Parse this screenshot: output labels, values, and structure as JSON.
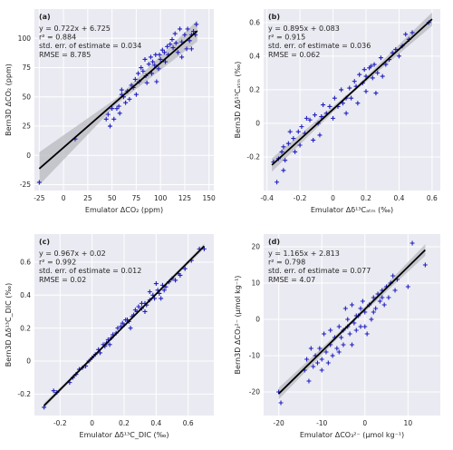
{
  "chart_data": [
    {
      "type": "scatter",
      "panel": "(a)",
      "stats": [
        "y = 0.722x + 6.725",
        "r² = 0.884",
        "std. err. of estimate = 0.034",
        "RMSE = 8.785"
      ],
      "xlabel": "Emulator ΔCO₂ (ppm)",
      "ylabel": "Bern3D ΔCO₂ (ppm)",
      "xlim": [
        -30,
        155
      ],
      "ylim": [
        -30,
        125
      ],
      "xticks": [
        -25,
        0,
        25,
        50,
        75,
        100,
        125,
        150
      ],
      "yticks": [
        -25,
        0,
        25,
        50,
        75,
        100
      ],
      "fit": {
        "slope": 0.722,
        "intercept": 6.725,
        "x": [
          -25,
          138
        ]
      },
      "band": {
        "left": 14,
        "mid": 2.5,
        "right": 9
      },
      "points": [
        [
          -25,
          -23
        ],
        [
          12,
          14
        ],
        [
          44,
          31
        ],
        [
          46,
          35
        ],
        [
          48,
          25
        ],
        [
          50,
          40
        ],
        [
          52,
          31
        ],
        [
          55,
          40
        ],
        [
          57,
          42
        ],
        [
          60,
          52
        ],
        [
          62,
          50
        ],
        [
          64,
          45
        ],
        [
          66,
          55
        ],
        [
          68,
          48
        ],
        [
          70,
          60
        ],
        [
          72,
          58
        ],
        [
          74,
          65
        ],
        [
          75,
          52
        ],
        [
          77,
          70
        ],
        [
          78,
          63
        ],
        [
          80,
          75
        ],
        [
          82,
          72
        ],
        [
          84,
          82
        ],
        [
          85,
          68
        ],
        [
          86,
          62
        ],
        [
          88,
          78
        ],
        [
          90,
          84
        ],
        [
          91,
          70
        ],
        [
          92,
          80
        ],
        [
          94,
          77
        ],
        [
          95,
          86
        ],
        [
          96,
          63
        ],
        [
          98,
          74
        ],
        [
          99,
          86
        ],
        [
          100,
          82
        ],
        [
          102,
          90
        ],
        [
          104,
          88
        ],
        [
          105,
          80
        ],
        [
          107,
          93
        ],
        [
          108,
          86
        ],
        [
          110,
          95
        ],
        [
          112,
          99
        ],
        [
          113,
          92
        ],
        [
          115,
          104
        ],
        [
          116,
          96
        ],
        [
          118,
          88
        ],
        [
          120,
          108
        ],
        [
          122,
          97
        ],
        [
          125,
          103
        ],
        [
          127,
          91
        ],
        [
          128,
          108
        ],
        [
          130,
          98
        ],
        [
          132,
          103
        ],
        [
          134,
          106
        ],
        [
          136,
          103
        ],
        [
          137,
          112
        ],
        [
          132,
          91
        ],
        [
          122,
          84
        ],
        [
          60,
          56
        ],
        [
          58,
          36
        ]
      ]
    },
    {
      "type": "scatter",
      "panel": "(b)",
      "stats": [
        "y = 0.895x + 0.083",
        "r² = 0.915",
        "std. err. of estimate = 0.036",
        "RMSE = 0.062"
      ],
      "xlabel": "Emulator Δδ¹³Cₐₜₘ (‰)",
      "ylabel": "Bern3D Δδ¹³Cₐₜₘ (‰)",
      "xlim": [
        -0.42,
        0.65
      ],
      "ylim": [
        -0.4,
        0.68
      ],
      "xticks": [
        -0.4,
        -0.2,
        0.0,
        0.2,
        0.4,
        0.6
      ],
      "yticks": [
        -0.2,
        0.0,
        0.2,
        0.4,
        0.6
      ],
      "fit": {
        "slope": 0.895,
        "intercept": 0.083,
        "x": [
          -0.37,
          0.6
        ]
      },
      "band": {
        "left": 0.04,
        "mid": 0.01,
        "right": 0.04
      },
      "points": [
        [
          -0.36,
          -0.23
        ],
        [
          -0.34,
          -0.35
        ],
        [
          -0.33,
          -0.21
        ],
        [
          -0.31,
          -0.17
        ],
        [
          -0.3,
          -0.14
        ],
        [
          -0.29,
          -0.22
        ],
        [
          -0.27,
          -0.12
        ],
        [
          -0.26,
          -0.05
        ],
        [
          -0.24,
          -0.09
        ],
        [
          -0.23,
          -0.17
        ],
        [
          -0.21,
          -0.05
        ],
        [
          -0.2,
          -0.13
        ],
        [
          -0.19,
          -0.02
        ],
        [
          -0.17,
          -0.06
        ],
        [
          -0.16,
          0.03
        ],
        [
          -0.14,
          0.02
        ],
        [
          -0.12,
          -0.1
        ],
        [
          -0.11,
          0.05
        ],
        [
          -0.09,
          0.0
        ],
        [
          -0.07,
          0.04
        ],
        [
          -0.06,
          0.11
        ],
        [
          -0.04,
          0.06
        ],
        [
          -0.02,
          0.1
        ],
        [
          0.0,
          0.03
        ],
        [
          0.01,
          0.15
        ],
        [
          0.03,
          0.1
        ],
        [
          0.05,
          0.2
        ],
        [
          0.06,
          0.12
        ],
        [
          0.08,
          0.06
        ],
        [
          0.1,
          0.21
        ],
        [
          0.11,
          0.15
        ],
        [
          0.13,
          0.25
        ],
        [
          0.14,
          0.22
        ],
        [
          0.16,
          0.29
        ],
        [
          0.18,
          0.24
        ],
        [
          0.19,
          0.32
        ],
        [
          0.2,
          0.28
        ],
        [
          0.22,
          0.33
        ],
        [
          0.24,
          0.27
        ],
        [
          0.25,
          0.35
        ],
        [
          0.27,
          0.3
        ],
        [
          0.29,
          0.39
        ],
        [
          0.3,
          0.28
        ],
        [
          0.32,
          0.35
        ],
        [
          0.34,
          0.38
        ],
        [
          0.36,
          0.42
        ],
        [
          0.38,
          0.44
        ],
        [
          0.4,
          0.4
        ],
        [
          0.42,
          0.46
        ],
        [
          0.44,
          0.53
        ],
        [
          0.46,
          0.5
        ],
        [
          0.48,
          0.54
        ],
        [
          0.58,
          0.6
        ],
        [
          0.2,
          0.19
        ],
        [
          0.23,
          0.34
        ],
        [
          -0.08,
          -0.07
        ],
        [
          0.08,
          0.15
        ],
        [
          0.15,
          0.12
        ],
        [
          -0.3,
          -0.28
        ],
        [
          0.26,
          0.18
        ]
      ]
    },
    {
      "type": "scatter",
      "panel": "(c)",
      "stats": [
        "y = 0.967x + 0.02",
        "r² = 0.992",
        "std. err. of estimate = 0.012",
        "RMSE = 0.02"
      ],
      "xlabel": "Emulator Δδ¹³C_DIC (‰)",
      "ylabel": "Bern3D Δδ¹³C_DIC (‰)",
      "xlim": [
        -0.36,
        0.76
      ],
      "ylim": [
        -0.33,
        0.77
      ],
      "xticks": [
        -0.2,
        0.0,
        0.2,
        0.4,
        0.6
      ],
      "yticks": [
        -0.2,
        0.0,
        0.2,
        0.4,
        0.6
      ],
      "fit": {
        "slope": 0.967,
        "intercept": 0.02,
        "x": [
          -0.3,
          0.7
        ]
      },
      "band": {
        "left": 0.015,
        "mid": 0.005,
        "right": 0.015
      },
      "points": [
        [
          -0.3,
          -0.28
        ],
        [
          -0.24,
          -0.18
        ],
        [
          -0.22,
          -0.19
        ],
        [
          -0.14,
          -0.13
        ],
        [
          -0.12,
          -0.1
        ],
        [
          -0.1,
          -0.08
        ],
        [
          -0.08,
          -0.05
        ],
        [
          -0.06,
          -0.04
        ],
        [
          -0.04,
          -0.03
        ],
        [
          -0.02,
          0.0
        ],
        [
          0.0,
          0.02
        ],
        [
          0.02,
          0.04
        ],
        [
          0.04,
          0.07
        ],
        [
          0.05,
          0.05
        ],
        [
          0.07,
          0.1
        ],
        [
          0.09,
          0.11
        ],
        [
          0.1,
          0.13
        ],
        [
          0.12,
          0.14
        ],
        [
          0.13,
          0.16
        ],
        [
          0.15,
          0.17
        ],
        [
          0.16,
          0.2
        ],
        [
          0.18,
          0.21
        ],
        [
          0.2,
          0.22
        ],
        [
          0.21,
          0.25
        ],
        [
          0.23,
          0.24
        ],
        [
          0.25,
          0.27
        ],
        [
          0.26,
          0.28
        ],
        [
          0.28,
          0.3
        ],
        [
          0.29,
          0.33
        ],
        [
          0.31,
          0.32
        ],
        [
          0.33,
          0.35
        ],
        [
          0.34,
          0.34
        ],
        [
          0.36,
          0.37
        ],
        [
          0.38,
          0.4
        ],
        [
          0.39,
          0.38
        ],
        [
          0.41,
          0.43
        ],
        [
          0.42,
          0.41
        ],
        [
          0.44,
          0.46
        ],
        [
          0.46,
          0.45
        ],
        [
          0.48,
          0.48
        ],
        [
          0.5,
          0.5
        ],
        [
          0.52,
          0.49
        ],
        [
          0.54,
          0.53
        ],
        [
          0.58,
          0.56
        ],
        [
          0.62,
          0.61
        ],
        [
          0.67,
          0.68
        ],
        [
          0.7,
          0.68
        ],
        [
          0.36,
          0.42
        ],
        [
          0.43,
          0.38
        ],
        [
          0.19,
          0.23
        ],
        [
          0.24,
          0.2
        ],
        [
          0.31,
          0.35
        ],
        [
          0.11,
          0.1
        ],
        [
          0.4,
          0.47
        ],
        [
          0.22,
          0.25
        ],
        [
          0.27,
          0.31
        ],
        [
          0.33,
          0.3
        ],
        [
          0.45,
          0.43
        ],
        [
          0.08,
          0.09
        ],
        [
          0.55,
          0.52
        ]
      ]
    },
    {
      "type": "scatter",
      "panel": "(d)",
      "stats": [
        "y = 1.165x + 2.813",
        "r² = 0.798",
        "std. err. of estimate = 0.077",
        "RMSE = 4.07"
      ],
      "xlabel": "Emulator ΔCO₃²⁻ (μmol kg⁻¹)",
      "ylabel": "Bern3D ΔCO₃²⁻ (μmol kg⁻¹)",
      "xlim": [
        -23.5,
        17.5
      ],
      "ylim": [
        -26.5,
        23.5
      ],
      "xticks": [
        -20,
        -10,
        0,
        10
      ],
      "yticks": [
        -20,
        -10,
        0,
        10,
        20
      ],
      "fit": {
        "slope": 1.165,
        "intercept": 2.813,
        "x": [
          -20,
          14
        ]
      },
      "band": {
        "left": 1.6,
        "mid": 0.5,
        "right": 1.6
      },
      "points": [
        [
          -20,
          -20
        ],
        [
          -19.5,
          -23
        ],
        [
          -14,
          -14
        ],
        [
          -13.5,
          -11
        ],
        [
          -13,
          -17
        ],
        [
          -12.5,
          -8
        ],
        [
          -12,
          -13
        ],
        [
          -11.5,
          -10
        ],
        [
          -11,
          -12
        ],
        [
          -10.5,
          -8
        ],
        [
          -10,
          -11
        ],
        [
          -9.5,
          -4
        ],
        [
          -9,
          -9
        ],
        [
          -8.5,
          -12
        ],
        [
          -8,
          -7
        ],
        [
          -7.5,
          -10
        ],
        [
          -7,
          -5
        ],
        [
          -6.5,
          -8
        ],
        [
          -6,
          -2
        ],
        [
          -5.5,
          -5
        ],
        [
          -5,
          -7
        ],
        [
          -4.5,
          3
        ],
        [
          -4,
          -2
        ],
        [
          -3.5,
          -4
        ],
        [
          -3,
          4
        ],
        [
          -2.5,
          -1
        ],
        [
          -2,
          -3
        ],
        [
          -1.5,
          1
        ],
        [
          -1,
          -2
        ],
        [
          -0.5,
          5
        ],
        [
          0,
          2
        ],
        [
          0.5,
          -4
        ],
        [
          1,
          4
        ],
        [
          1.5,
          0
        ],
        [
          2,
          6
        ],
        [
          2.5,
          3
        ],
        [
          3,
          7
        ],
        [
          3.5,
          5
        ],
        [
          4,
          8
        ],
        [
          4.5,
          4
        ],
        [
          5,
          9
        ],
        [
          5.5,
          6
        ],
        [
          6,
          10
        ],
        [
          6.5,
          12
        ],
        [
          7,
          8
        ],
        [
          7.5,
          11
        ],
        [
          10,
          9
        ],
        [
          11,
          21
        ],
        [
          14,
          15
        ],
        [
          -8,
          -3
        ],
        [
          -5,
          -3
        ],
        [
          -3,
          -7
        ],
        [
          -2,
          1
        ],
        [
          0,
          -2
        ],
        [
          2,
          2
        ],
        [
          4,
          6
        ],
        [
          -6,
          -9
        ],
        [
          -10,
          -14
        ],
        [
          -4,
          0
        ],
        [
          -1,
          3
        ]
      ]
    }
  ]
}
